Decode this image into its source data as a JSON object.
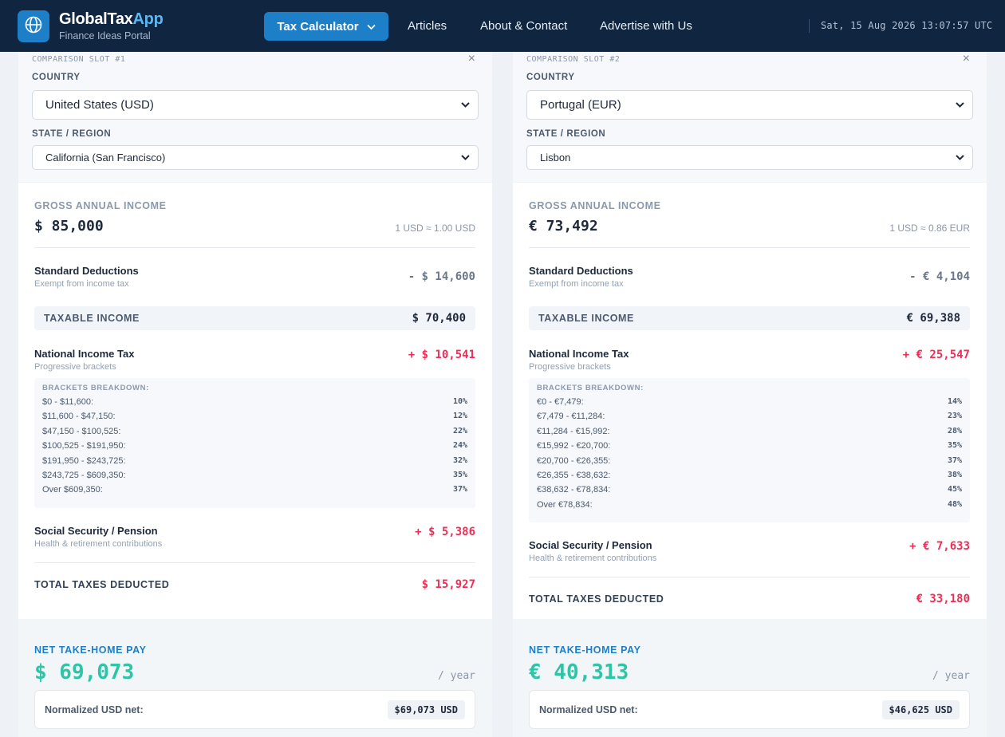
{
  "header": {
    "brand_main": "GlobalTax",
    "brand_accent": "App",
    "subtitle": "Finance Ideas Portal",
    "logo_icon": "globe-icon",
    "nav_primary": "Tax Calculator",
    "nav_links": [
      "Articles",
      "About & Contact",
      "Advertise with Us"
    ],
    "clock": "Sat, 15 Aug 2026 13:07:57 UTC"
  },
  "slots": [
    {
      "slot_label": "COMPARISON SLOT #1",
      "close": "×",
      "country_label": "COUNTRY",
      "country": "United States (USD)",
      "region_label": "STATE / REGION",
      "region": "California (San Francisco)",
      "gross_label": "GROSS ANNUAL INCOME",
      "gross": "$ 85,000",
      "fx": "1 USD ≈ 1.00 USD",
      "deduction_title": "Standard Deductions",
      "deduction_sub": "Exempt from income tax",
      "deduction_val": "- $ 14,600",
      "taxable_label": "TAXABLE INCOME",
      "taxable_val": "$ 70,400",
      "income_tax_title": "National Income Tax",
      "income_tax_sub": "Progressive brackets",
      "income_tax_val": "+ $ 10,541",
      "brackets_header": "BRACKETS BREAKDOWN:",
      "brackets": [
        {
          "range": "$0 - $11,600:",
          "pct": "10%"
        },
        {
          "range": "$11,600 - $47,150:",
          "pct": "12%"
        },
        {
          "range": "$47,150 - $100,525:",
          "pct": "22%"
        },
        {
          "range": "$100,525 - $191,950:",
          "pct": "24%"
        },
        {
          "range": "$191,950 - $243,725:",
          "pct": "32%"
        },
        {
          "range": "$243,725 - $609,350:",
          "pct": "35%"
        },
        {
          "range": "Over $609,350:",
          "pct": "37%"
        }
      ],
      "social_title": "Social Security / Pension",
      "social_sub": "Health & retirement contributions",
      "social_val": "+ $ 5,386",
      "total_label": "TOTAL TAXES DEDUCTED",
      "total_val": "$ 15,927",
      "net_label": "NET TAKE-HOME PAY",
      "net_val": "$ 69,073",
      "per_year": "/ year",
      "norm_label": "Normalized USD net:",
      "norm_val": "$69,073 USD"
    },
    {
      "slot_label": "COMPARISON SLOT #2",
      "close": "×",
      "country_label": "COUNTRY",
      "country": "Portugal (EUR)",
      "region_label": "STATE / REGION",
      "region": "Lisbon",
      "gross_label": "GROSS ANNUAL INCOME",
      "gross": "€ 73,492",
      "fx": "1 USD ≈ 0.86 EUR",
      "deduction_title": "Standard Deductions",
      "deduction_sub": "Exempt from income tax",
      "deduction_val": "- € 4,104",
      "taxable_label": "TAXABLE INCOME",
      "taxable_val": "€ 69,388",
      "income_tax_title": "National Income Tax",
      "income_tax_sub": "Progressive brackets",
      "income_tax_val": "+ € 25,547",
      "brackets_header": "BRACKETS BREAKDOWN:",
      "brackets": [
        {
          "range": "€0 - €7,479:",
          "pct": "14%"
        },
        {
          "range": "€7,479 - €11,284:",
          "pct": "23%"
        },
        {
          "range": "€11,284 - €15,992:",
          "pct": "28%"
        },
        {
          "range": "€15,992 - €20,700:",
          "pct": "35%"
        },
        {
          "range": "€20,700 - €26,355:",
          "pct": "37%"
        },
        {
          "range": "€26,355 - €38,632:",
          "pct": "38%"
        },
        {
          "range": "€38,632 - €78,834:",
          "pct": "45%"
        },
        {
          "range": "Over €78,834:",
          "pct": "48%"
        }
      ],
      "social_title": "Social Security / Pension",
      "social_sub": "Health & retirement contributions",
      "social_val": "+ € 7,633",
      "total_label": "TOTAL TAXES DEDUCTED",
      "total_val": "€ 33,180",
      "net_label": "NET TAKE-HOME PAY",
      "net_val": "€ 40,313",
      "per_year": "/ year",
      "norm_label": "Normalized USD net:",
      "norm_val": "$46,625 USD"
    }
  ]
}
